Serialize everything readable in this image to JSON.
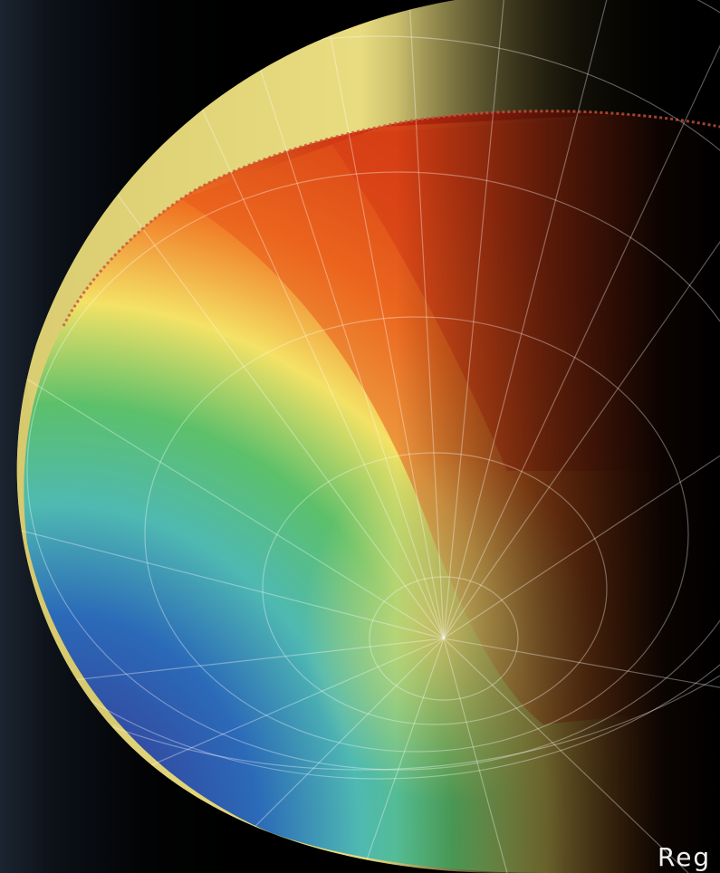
{
  "caption": {
    "text": "Reg"
  },
  "colors": {
    "background": "#000000",
    "cap": "#e6d47a",
    "deep_red": "#c62a10",
    "orange": "#f07422",
    "yellow": "#f4e266",
    "green": "#5cc06a",
    "teal": "#4fb9b2",
    "blue": "#2b6ab8",
    "indigo": "#3a2a8a"
  },
  "graphics": {
    "subject": "globe-temperature-map",
    "grid": "latitude-longitude-lines"
  }
}
